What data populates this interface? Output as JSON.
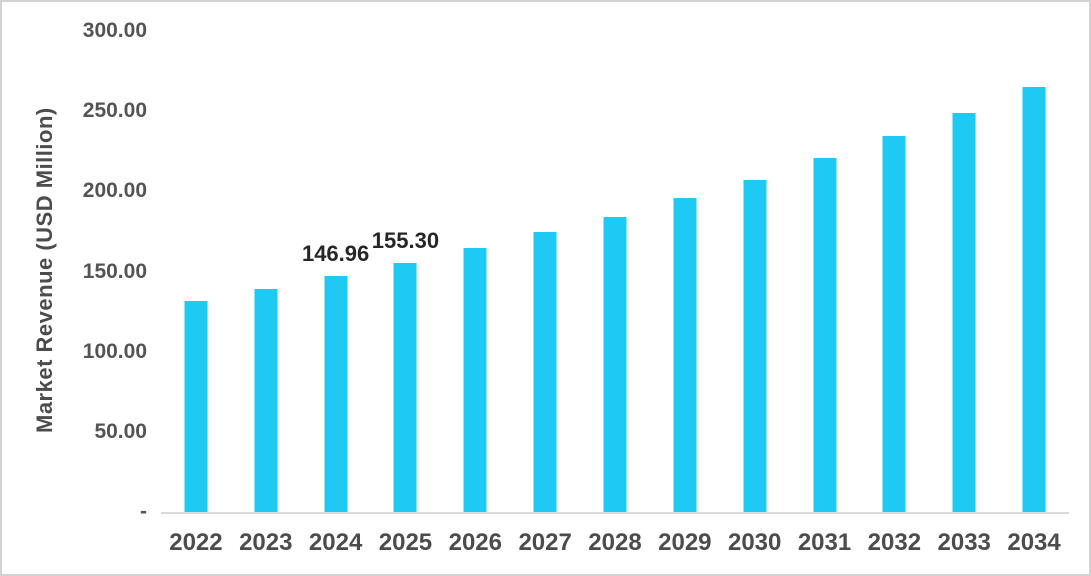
{
  "chart_data": {
    "type": "bar",
    "title": "",
    "xlabel": "",
    "ylabel": "Market Revenue (USD Million)",
    "ylim": [
      0,
      300
    ],
    "grid": false,
    "legend_position": "none",
    "categories": [
      "2022",
      "2023",
      "2024",
      "2025",
      "2026",
      "2027",
      "2028",
      "2029",
      "2030",
      "2031",
      "2032",
      "2033",
      "2034"
    ],
    "values": [
      131.5,
      139.0,
      146.96,
      155.3,
      164.5,
      174.4,
      183.8,
      196.0,
      207.0,
      220.6,
      234.3,
      248.6,
      264.8
    ],
    "point_labels": [
      "",
      "",
      "146.96",
      "155.30",
      "",
      "",
      "",
      "",
      "",
      "",
      "",
      "",
      ""
    ],
    "y_ticks": [
      {
        "label": "300.00",
        "value": 300
      },
      {
        "label": "250.00",
        "value": 250
      },
      {
        "label": "200.00",
        "value": 200
      },
      {
        "label": "150.00",
        "value": 150
      },
      {
        "label": "100.00",
        "value": 100
      },
      {
        "label": "50.00",
        "value": 50
      },
      {
        "label": "-",
        "value": 0
      }
    ]
  },
  "colors": {
    "bar": "#1ec9f4",
    "axis_line": "#d9d9d9",
    "tick_text": "#545454",
    "x_label_text": "#4c4c4c",
    "data_label_text": "#262626",
    "border": "#d3d3d3",
    "background": "#ffffff"
  }
}
